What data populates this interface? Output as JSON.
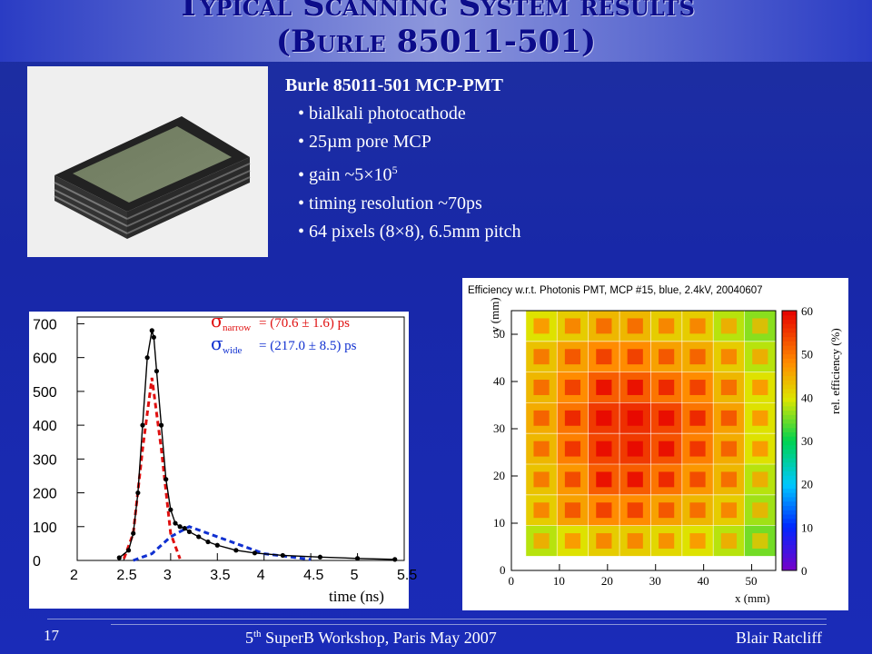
{
  "slide": {
    "title_line1": "Typical Scanning System results",
    "title_line2": "(Burle 85011-501)",
    "page_number": "17",
    "workshop_sup": "th",
    "workshop_prefix": "5",
    "workshop_rest": " SuperB Workshop, Paris  May 2007",
    "author": "Blair Ratcliff"
  },
  "specs": {
    "heading": "Burle 85011-501 MCP-PMT",
    "items": [
      "bialkali photocathode",
      "25µm pore MCP",
      "gain ~5×10",
      "timing resolution ~70ps",
      "64 pixels (8×8), 6.5mm pitch"
    ],
    "gain_exponent": "5"
  },
  "timing_plot": {
    "sigma_narrow_label": "σ",
    "sigma_narrow_sub": "narrow",
    "sigma_narrow_value": "= (70.6 ± 1.6) ps",
    "sigma_wide_label": "σ",
    "sigma_wide_sub": "wide",
    "sigma_wide_value": "= (217.0 ± 8.5) ps",
    "xlabel": "time (ns)",
    "narrow_color": "#e01010",
    "wide_color": "#1030d0"
  },
  "eff_plot": {
    "title": "Efficiency w.r.t. Photonis PMT, MCP #15, blue, 2.4kV, 20040607",
    "xlabel": "x (mm)",
    "ylabel": "y (mm)",
    "zlabel": "rel. efficiency (%)"
  },
  "chart_data": [
    {
      "type": "scatter",
      "xlabel": "time (ns)",
      "ylabel": "",
      "xlim": [
        2,
        5.5
      ],
      "ylim": [
        0,
        720
      ],
      "x_ticks": [
        "2",
        "2.5",
        "3",
        "3.5",
        "4",
        "4.5",
        "5",
        "5.5"
      ],
      "y_ticks": [
        "0",
        "100",
        "200",
        "300",
        "400",
        "500",
        "600",
        "700"
      ],
      "series": [
        {
          "name": "data",
          "x": [
            2.45,
            2.55,
            2.6,
            2.65,
            2.7,
            2.75,
            2.8,
            2.82,
            2.85,
            2.9,
            2.95,
            3.0,
            3.05,
            3.1,
            3.15,
            3.2,
            3.3,
            3.4,
            3.5,
            3.7,
            3.9,
            4.2,
            4.6,
            5.0,
            5.4
          ],
          "values": [
            8,
            30,
            80,
            200,
            400,
            600,
            680,
            660,
            560,
            400,
            240,
            150,
            110,
            100,
            95,
            85,
            70,
            55,
            45,
            30,
            22,
            15,
            10,
            6,
            3
          ]
        },
        {
          "name": "σnarrow = (70.6 ± 1.6) ps",
          "x": [
            2.5,
            2.6,
            2.7,
            2.8,
            2.9,
            3.0,
            3.1
          ],
          "values": [
            5,
            80,
            330,
            540,
            330,
            80,
            5
          ]
        },
        {
          "name": "σwide = (217.0 ± 8.5) ps",
          "x": [
            2.6,
            2.8,
            3.0,
            3.2,
            3.5,
            4.0,
            4.5
          ],
          "values": [
            0,
            20,
            70,
            100,
            70,
            20,
            3
          ]
        }
      ]
    },
    {
      "type": "heatmap",
      "title": "Efficiency w.r.t. Photonis PMT, MCP #15, blue, 2.4kV, 20040607",
      "xlabel": "x (mm)",
      "ylabel": "y (mm)",
      "zlabel": "rel. efficiency (%)",
      "xlim": [
        0,
        55
      ],
      "ylim": [
        0,
        55
      ],
      "zlim": [
        0,
        60
      ],
      "x_ticks": [
        "0",
        "10",
        "20",
        "30",
        "40",
        "50"
      ],
      "y_ticks": [
        "0",
        "10",
        "20",
        "30",
        "40",
        "50"
      ],
      "z_ticks": [
        "0",
        "10",
        "20",
        "30",
        "40",
        "50",
        "60"
      ],
      "grid_rows": 8,
      "grid_cols": 8,
      "values": [
        [
          40,
          42,
          44,
          44,
          42,
          42,
          38,
          36
        ],
        [
          43,
          46,
          48,
          48,
          46,
          45,
          42,
          38
        ],
        [
          44,
          48,
          52,
          52,
          50,
          48,
          44,
          40
        ],
        [
          45,
          50,
          55,
          56,
          54,
          50,
          46,
          40
        ],
        [
          44,
          49,
          54,
          55,
          53,
          49,
          45,
          40
        ],
        [
          43,
          47,
          52,
          52,
          50,
          47,
          44,
          38
        ],
        [
          42,
          46,
          48,
          48,
          46,
          44,
          42,
          37
        ],
        [
          38,
          40,
          42,
          42,
          41,
          40,
          38,
          35
        ]
      ]
    }
  ]
}
